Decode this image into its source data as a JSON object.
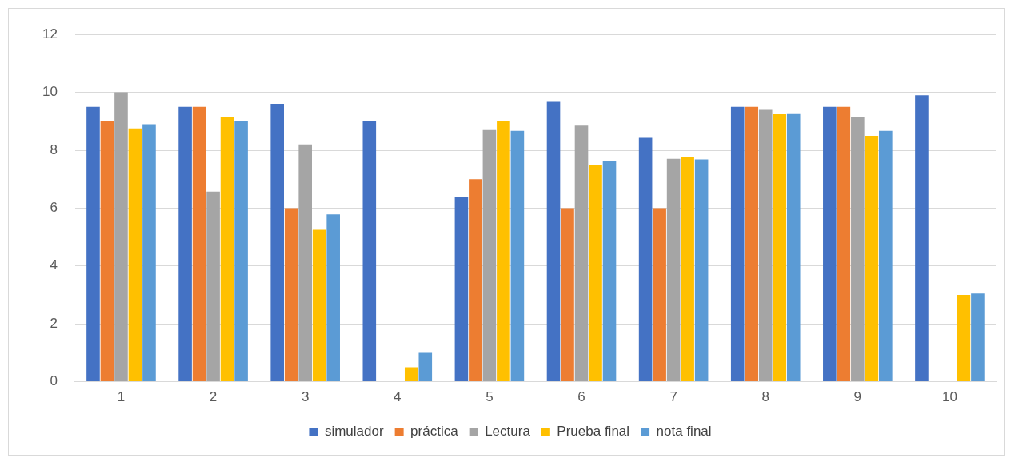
{
  "chart_data": {
    "type": "bar",
    "categories": [
      "1",
      "2",
      "3",
      "4",
      "5",
      "6",
      "7",
      "8",
      "9",
      "10"
    ],
    "series": [
      {
        "name": "simulador",
        "color": "#4472c4",
        "values": [
          9.5,
          9.5,
          9.6,
          9.0,
          6.4,
          9.7,
          8.43,
          9.5,
          9.5,
          9.9
        ]
      },
      {
        "name": "práctica",
        "color": "#ed7d31",
        "values": [
          9.0,
          9.5,
          6.0,
          0,
          7.0,
          6.0,
          6.0,
          9.5,
          9.5,
          0
        ]
      },
      {
        "name": "Lectura",
        "color": "#a5a5a5",
        "values": [
          10,
          6.57,
          8.2,
          0,
          8.7,
          8.85,
          7.7,
          9.42,
          9.13,
          0
        ]
      },
      {
        "name": "Prueba final",
        "color": "#ffc000",
        "values": [
          8.75,
          9.15,
          5.25,
          0.5,
          9.0,
          7.5,
          7.75,
          9.25,
          8.5,
          3.0
        ]
      },
      {
        "name": "nota final",
        "color": "#5b9bd5",
        "values": [
          8.9,
          9.0,
          5.78,
          1.0,
          8.67,
          7.63,
          7.68,
          9.28,
          8.67,
          3.05
        ]
      }
    ],
    "ylim": [
      0,
      12
    ],
    "yticks": [
      0,
      2,
      4,
      6,
      8,
      10,
      12
    ],
    "grid": "y",
    "legend": "bottom"
  }
}
